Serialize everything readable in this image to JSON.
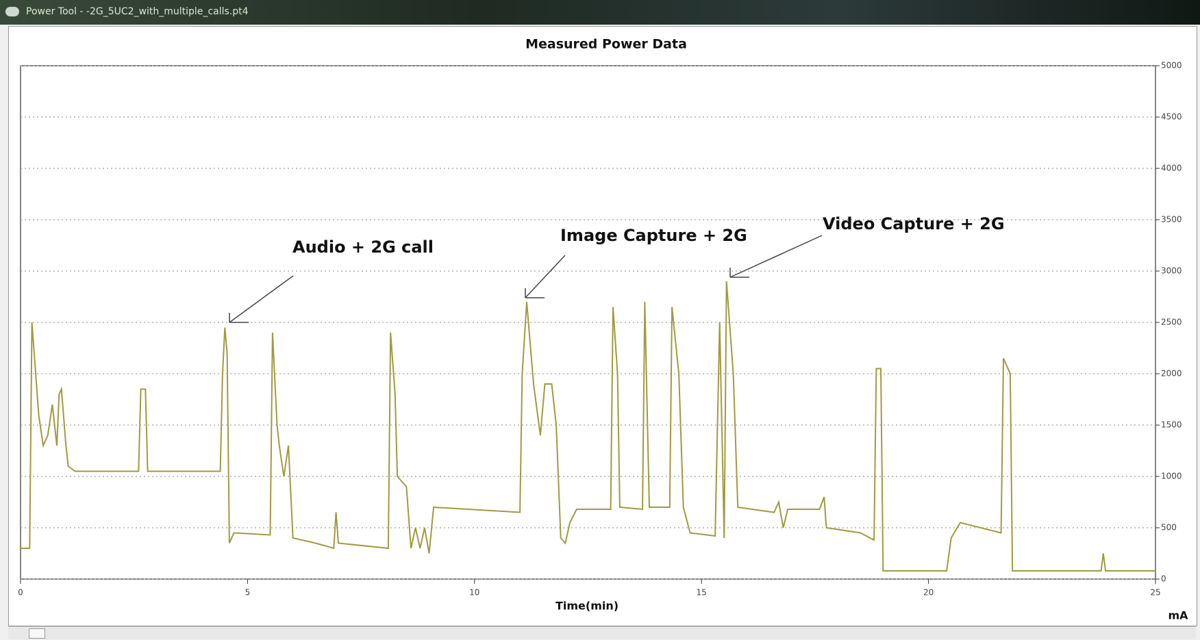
{
  "window_title": "Power Tool - -2G_5UC2_with_multiple_calls.pt4",
  "chart_data": {
    "type": "line",
    "title": "Measured Power Data",
    "x_label": "Time(min)",
    "y_label": "mA",
    "annotations": [
      "Audio + 2G call",
      "Image Capture + 2G",
      "Video Capture + 2G"
    ],
    "xlim": [
      0,
      25
    ],
    "xticks": [
      0,
      5,
      10,
      15,
      20,
      25
    ],
    "ylim": [
      0,
      5000
    ],
    "yticks": [
      0,
      500,
      1000,
      1500,
      2000,
      2500,
      3000,
      3500,
      4000,
      4500,
      5000
    ],
    "grid": true,
    "series": [
      {
        "color": "#a09a40",
        "x": [
          0,
          0.2,
          0.25,
          0.3,
          0.4,
          0.5,
          0.6,
          0.7,
          0.8,
          0.85,
          0.9,
          1.0,
          1.05,
          1.2,
          2.6,
          2.65,
          2.75,
          2.8,
          4.4,
          4.45,
          4.5,
          4.55,
          4.6,
          4.7,
          5.5,
          5.55,
          5.65,
          5.7,
          5.8,
          5.9,
          6.0,
          6.5,
          6.9,
          6.95,
          7.0,
          8.1,
          8.15,
          8.25,
          8.3,
          8.5,
          8.6,
          8.7,
          8.8,
          8.9,
          9.0,
          9.1,
          11.0,
          11.05,
          11.15,
          11.3,
          11.45,
          11.55,
          11.7,
          11.8,
          11.9,
          12.0,
          12.1,
          12.25,
          13.0,
          13.05,
          13.15,
          13.2,
          13.7,
          13.75,
          13.85,
          14.3,
          14.35,
          14.5,
          14.6,
          14.75,
          15.3,
          15.4,
          15.5,
          15.55,
          15.7,
          15.8,
          16.6,
          16.7,
          16.8,
          16.9,
          17.6,
          17.7,
          17.75,
          18.5,
          18.8,
          18.85,
          18.95,
          19.0,
          20.4,
          20.5,
          20.7,
          21.6,
          21.65,
          21.8,
          21.85,
          23.8,
          23.85,
          23.9,
          25
        ],
        "values": [
          300,
          300,
          2500,
          2200,
          1600,
          1300,
          1400,
          1700,
          1300,
          1800,
          1850,
          1300,
          1100,
          1050,
          1050,
          1850,
          1850,
          1050,
          1050,
          2000,
          2450,
          2200,
          350,
          450,
          430,
          2400,
          1500,
          1300,
          1000,
          1300,
          400,
          350,
          300,
          650,
          350,
          300,
          2400,
          1800,
          1000,
          900,
          300,
          500,
          300,
          500,
          250,
          700,
          650,
          2000,
          2700,
          1900,
          1400,
          1900,
          1900,
          1500,
          400,
          350,
          550,
          680,
          680,
          2650,
          2000,
          700,
          680,
          2700,
          700,
          700,
          2650,
          2000,
          700,
          450,
          420,
          2500,
          400,
          2900,
          2000,
          700,
          650,
          750,
          500,
          680,
          680,
          800,
          500,
          450,
          380,
          2050,
          2050,
          80,
          80,
          400,
          550,
          450,
          2150,
          2000,
          80,
          80,
          250,
          80,
          80
        ]
      }
    ]
  }
}
